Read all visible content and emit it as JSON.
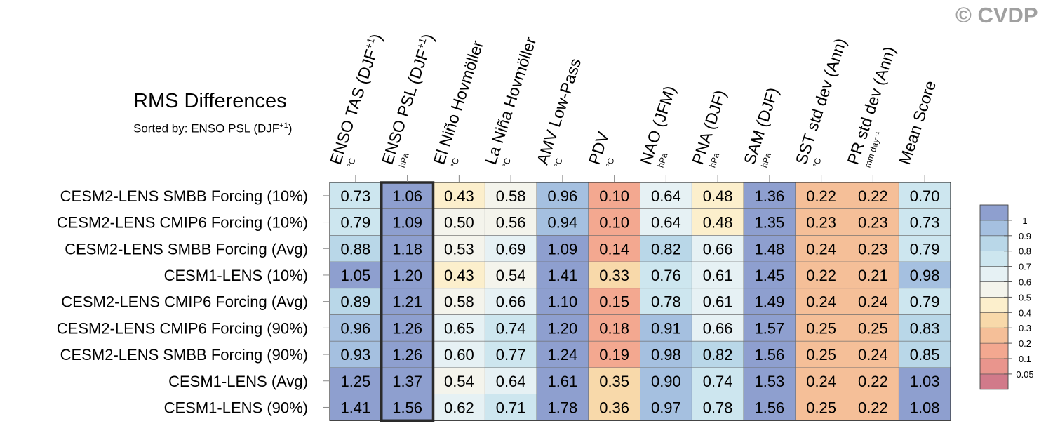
{
  "title": "RMS Differences",
  "subtitle": {
    "prefix": "Sorted by: ENSO PSL (DJF",
    "sup": "+1",
    "suffix": ")"
  },
  "watermark": "© CVDP",
  "chart_data": {
    "type": "heatmap",
    "title": "RMS Differences",
    "sorted_by_column": 1,
    "columns": [
      {
        "label": "ENSO TAS (DJF",
        "sup": "+1",
        "close": ")",
        "unit": "°C"
      },
      {
        "label": "ENSO PSL (DJF",
        "sup": "+1",
        "close": ")",
        "unit": "hPa"
      },
      {
        "label": "El Niño Hovmöller",
        "sup": "",
        "close": "",
        "unit": "°C"
      },
      {
        "label": "La Niña Hovmöller",
        "sup": "",
        "close": "",
        "unit": "°C"
      },
      {
        "label": "AMV Low-Pass",
        "sup": "",
        "close": "",
        "unit": "°C"
      },
      {
        "label": "PDV",
        "sup": "",
        "close": "",
        "unit": "°C"
      },
      {
        "label": "NAO (JFM)",
        "sup": "",
        "close": "",
        "unit": "hPa"
      },
      {
        "label": "PNA (DJF)",
        "sup": "",
        "close": "",
        "unit": "hPa"
      },
      {
        "label": "SAM (DJF)",
        "sup": "",
        "close": "",
        "unit": "hPa"
      },
      {
        "label": "SST std dev (Ann)",
        "sup": "",
        "close": "",
        "unit": "°C"
      },
      {
        "label": "PR std dev (Ann)",
        "sup": "",
        "close": "",
        "unit": "mm day⁻¹"
      },
      {
        "label": "Mean Score",
        "sup": "",
        "close": "",
        "unit": ""
      }
    ],
    "rows": [
      "CESM2-LENS SMBB Forcing (10%)",
      "CESM2-LENS CMIP6 Forcing (10%)",
      "CESM2-LENS SMBB Forcing (Avg)",
      "CESM1-LENS (10%)",
      "CESM2-LENS CMIP6 Forcing (Avg)",
      "CESM2-LENS CMIP6 Forcing (90%)",
      "CESM2-LENS SMBB Forcing (90%)",
      "CESM1-LENS (Avg)",
      "CESM1-LENS (90%)"
    ],
    "values": [
      [
        0.73,
        1.06,
        0.43,
        0.58,
        0.96,
        0.1,
        0.64,
        0.48,
        1.36,
        0.22,
        0.22,
        0.7
      ],
      [
        0.79,
        1.09,
        0.5,
        0.56,
        0.94,
        0.1,
        0.64,
        0.48,
        1.35,
        0.23,
        0.23,
        0.73
      ],
      [
        0.88,
        1.18,
        0.53,
        0.69,
        1.09,
        0.14,
        0.82,
        0.66,
        1.48,
        0.24,
        0.23,
        0.79
      ],
      [
        1.05,
        1.2,
        0.43,
        0.54,
        1.41,
        0.33,
        0.76,
        0.61,
        1.45,
        0.22,
        0.21,
        0.98
      ],
      [
        0.89,
        1.21,
        0.58,
        0.66,
        1.1,
        0.15,
        0.78,
        0.61,
        1.49,
        0.24,
        0.24,
        0.79
      ],
      [
        0.96,
        1.26,
        0.65,
        0.74,
        1.2,
        0.18,
        0.91,
        0.66,
        1.57,
        0.25,
        0.25,
        0.83
      ],
      [
        0.93,
        1.26,
        0.6,
        0.77,
        1.24,
        0.19,
        0.98,
        0.82,
        1.56,
        0.25,
        0.24,
        0.85
      ],
      [
        1.25,
        1.37,
        0.54,
        0.64,
        1.61,
        0.35,
        0.9,
        0.74,
        1.53,
        0.24,
        0.22,
        1.03
      ],
      [
        1.41,
        1.56,
        0.62,
        0.71,
        1.78,
        0.36,
        0.97,
        0.78,
        1.56,
        0.25,
        0.22,
        1.08
      ]
    ],
    "legend": {
      "levels": [
        "0.05",
        "0.1",
        "0.2",
        "0.3",
        "0.4",
        "0.5",
        "0.6",
        "0.7",
        "0.8",
        "0.9",
        "1"
      ],
      "colors": [
        "#d17a8a",
        "#e9958d",
        "#f3a890",
        "#f5bf98",
        "#f8d9aa",
        "#fcefcc",
        "#f4f4ec",
        "#e6f1f4",
        "#cde6ef",
        "#b9d7e8",
        "#a5c0e0",
        "#8e9fcf"
      ],
      "placement": "right"
    }
  }
}
